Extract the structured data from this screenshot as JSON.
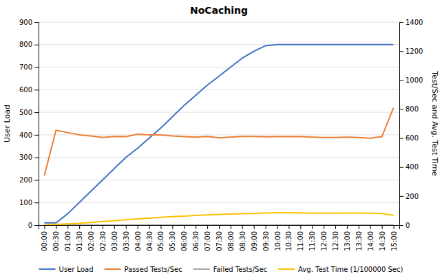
{
  "chart_data": {
    "type": "line",
    "title": "NoCaching",
    "y_label": "User Load",
    "y2_label": "Test/Sec and Avg. Test Time",
    "categories": [
      "00:00",
      "00:30",
      "01:00",
      "01:30",
      "02:00",
      "02:30",
      "03:00",
      "03:30",
      "04:00",
      "04:30",
      "05:00",
      "05:30",
      "06:00",
      "06:30",
      "07:00",
      "07:30",
      "08:00",
      "08:30",
      "09:00",
      "09:30",
      "10:00",
      "10:30",
      "11:00",
      "11:30",
      "12:00",
      "12:30",
      "13:00",
      "13:30",
      "14:00",
      "14:30",
      "15:00"
    ],
    "series": [
      {
        "name": "User Load",
        "color": "#4472C4",
        "values": [
          10,
          10,
          50,
          100,
          150,
          200,
          250,
          300,
          340,
          385,
          430,
          480,
          530,
          575,
          620,
          660,
          700,
          740,
          770,
          795,
          800,
          800,
          800,
          800,
          800,
          800,
          800,
          800,
          800,
          800,
          800
        ]
      },
      {
        "name": "Passed Tests/Sec",
        "color": "#ED7D31",
        "values": [
          220,
          420,
          410,
          400,
          395,
          388,
          393,
          392,
          403,
          400,
          400,
          395,
          392,
          390,
          393,
          387,
          390,
          393,
          393,
          391,
          392,
          392,
          392,
          390,
          388,
          388,
          390,
          388,
          385,
          392,
          520
        ]
      },
      {
        "name": "Failed Tests/Sec",
        "color": "#A5A5A5",
        "values": [
          0,
          0,
          0,
          0,
          0,
          0,
          0,
          0,
          0,
          0,
          0,
          0,
          0,
          0,
          0,
          0,
          0,
          0,
          0,
          0,
          0,
          0,
          0,
          0,
          0,
          0,
          0,
          0,
          0,
          0,
          0
        ]
      },
      {
        "name": "Avg. Test Time (1/100000 Sec)",
        "color": "#FFC000",
        "axis": "y2",
        "values": [
          2,
          5,
          8,
          12,
          18,
          25,
          30,
          37,
          43,
          48,
          53,
          58,
          62,
          67,
          70,
          73,
          76,
          78,
          80,
          83,
          85,
          85,
          84,
          82,
          82,
          82,
          83,
          83,
          82,
          80,
          68
        ]
      }
    ],
    "ylim": [
      0,
      900
    ],
    "yticks": [
      0,
      100,
      200,
      300,
      400,
      500,
      600,
      700,
      800,
      900
    ],
    "y2lim": [
      0,
      1400
    ],
    "y2ticks": [
      0,
      200,
      400,
      600,
      800,
      1000,
      1200,
      1400
    ],
    "grid": true,
    "legend": "bottom"
  }
}
